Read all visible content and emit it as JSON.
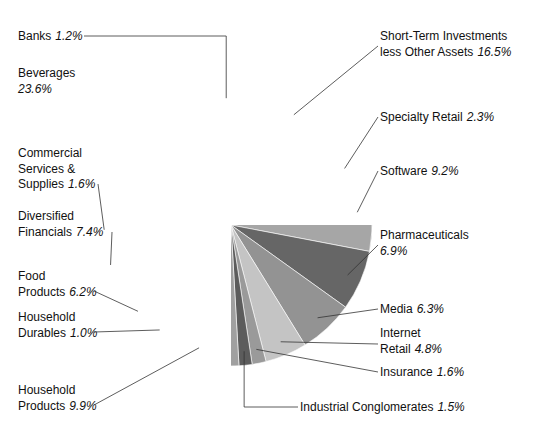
{
  "chart_data": {
    "type": "pie",
    "categories": [
      "Short-Term Investments less Other Assets",
      "Specialty Retail",
      "Software",
      "Pharmaceuticals",
      "Media",
      "Internet Retail",
      "Insurance",
      "Industrial Conglomerates",
      "Household Products",
      "Household Durables",
      "Food Products",
      "Diversified Financials",
      "Commercial Services & Supplies",
      "Beverages",
      "Banks"
    ],
    "values": [
      16.5,
      2.3,
      9.2,
      6.9,
      6.3,
      4.8,
      1.6,
      1.5,
      9.9,
      1.0,
      6.2,
      7.4,
      1.6,
      23.6,
      1.2
    ],
    "value_labels": [
      "16.5%",
      "2.3%",
      "9.2%",
      "6.9%",
      "6.3%",
      "4.8%",
      "1.6%",
      "1.5%",
      "9.9%",
      "1.0%",
      "6.2%",
      "7.4%",
      "1.6%",
      "23.6%",
      "1.2%"
    ],
    "colors": [
      "#a2a2a2",
      "#cbcbcb",
      "#a6a6a6",
      "#666666",
      "#939393",
      "#c4c4c4",
      "#9a9a9a",
      "#5c5c5c",
      "#a0a0a0",
      "#cacaca",
      "#a3a3a3",
      "#676767",
      "#c9c9c9",
      "#c6c6c6",
      "#575757"
    ],
    "data_labels": true
  }
}
